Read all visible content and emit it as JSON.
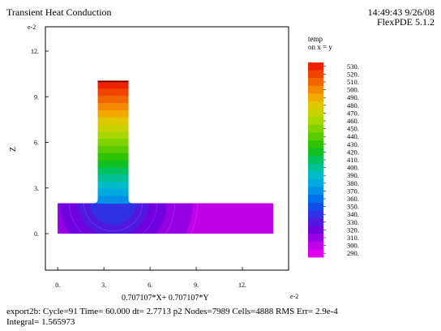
{
  "header": {
    "title": "Transient Heat Conduction",
    "timestamp": "14:49:43 9/26/08",
    "version": "FlexPDE 5.1.2"
  },
  "legend": {
    "title": "temp",
    "subtitle": "on x = y",
    "levels": [
      "530.",
      "520.",
      "510.",
      "500.",
      "490.",
      "480.",
      "470.",
      "460.",
      "450.",
      "440.",
      "430.",
      "420.",
      "410.",
      "400.",
      "390.",
      "380.",
      "370.",
      "360.",
      "350.",
      "340.",
      "330.",
      "320.",
      "310.",
      "300.",
      "290."
    ],
    "colors": [
      "#ee2200",
      "#f04400",
      "#f26600",
      "#f48800",
      "#f2a800",
      "#e0c800",
      "#c8d200",
      "#a8d600",
      "#80d200",
      "#58cc00",
      "#30c400",
      "#10c020",
      "#00c060",
      "#00c098",
      "#00bcc8",
      "#00a8e0",
      "#0090e8",
      "#0070ec",
      "#1050e8",
      "#3030e4",
      "#5018e0",
      "#7000e0",
      "#9800e4",
      "#c000e8",
      "#e000f0"
    ]
  },
  "footer": {
    "line1": "export2b:  Cycle=91  Time= 60.000  dt= 2.7713  p2  Nodes=7989 Cells=4888 RMS Err= 2.9e-4",
    "line2": "Integral=  1.565973"
  },
  "chart_data": {
    "type": "heatmap",
    "title": "Transient Heat Conduction",
    "xlabel": "0.707107*X+ 0.707107*Y",
    "ylabel": "Z",
    "x_exponent_label": "e-2",
    "y_exponent_label": "e-2",
    "xlim": [
      -0.8,
      15
    ],
    "ylim": [
      -2.4,
      13.6
    ],
    "x_ticks": [
      0,
      3,
      6,
      9,
      12
    ],
    "x_tick_labels": [
      "0.",
      "3.",
      "6.",
      "9.",
      "12."
    ],
    "y_ticks": [
      0,
      3,
      6,
      9,
      12
    ],
    "y_tick_labels": [
      "0.",
      "3.",
      "6.",
      "9.",
      "12."
    ],
    "regions": {
      "base_slab": {
        "x": [
          0,
          14
        ],
        "z": [
          0,
          2
        ]
      },
      "vertical_fin": {
        "x": [
          2.6,
          4.6
        ],
        "z": [
          2,
          10
        ]
      }
    },
    "top_boundary_temperature": 530,
    "min_temperature": 290,
    "fin_temperature_profile": [
      530,
      520,
      510,
      500,
      490,
      480,
      470,
      460,
      450,
      440,
      430,
      420,
      410,
      400,
      390,
      380,
      370
    ]
  }
}
